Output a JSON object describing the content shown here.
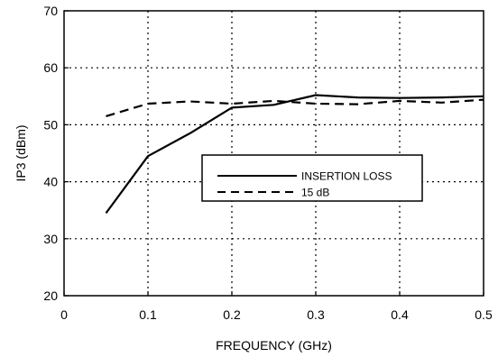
{
  "chart_data": {
    "type": "line",
    "title": "",
    "xlabel": "FREQUENCY (GHz)",
    "ylabel": "IP3 (dBm)",
    "xlim": [
      0,
      0.5
    ],
    "ylim": [
      20,
      70
    ],
    "x_ticks": [
      "0",
      "0.1",
      "0.2",
      "0.3",
      "0.4",
      "0.5"
    ],
    "y_ticks": [
      "20",
      "30",
      "40",
      "50",
      "60",
      "70"
    ],
    "grid": true,
    "grid_style": "dotted",
    "legend_position": "center-right",
    "series": [
      {
        "name": "INSERTION LOSS",
        "style": "solid",
        "color": "#000000",
        "points": [
          [
            0.05,
            34.5
          ],
          [
            0.1,
            44.5
          ],
          [
            0.15,
            48.5
          ],
          [
            0.2,
            53.0
          ],
          [
            0.25,
            53.5
          ],
          [
            0.3,
            55.2
          ],
          [
            0.35,
            54.8
          ],
          [
            0.4,
            54.7
          ],
          [
            0.45,
            54.8
          ],
          [
            0.5,
            55.0
          ]
        ]
      },
      {
        "name": "15 dB",
        "style": "dashed",
        "color": "#000000",
        "points": [
          [
            0.05,
            51.5
          ],
          [
            0.1,
            53.7
          ],
          [
            0.15,
            54.1
          ],
          [
            0.2,
            53.7
          ],
          [
            0.25,
            54.2
          ],
          [
            0.3,
            53.7
          ],
          [
            0.35,
            53.6
          ],
          [
            0.4,
            54.2
          ],
          [
            0.45,
            53.9
          ],
          [
            0.5,
            54.4
          ]
        ]
      }
    ]
  }
}
